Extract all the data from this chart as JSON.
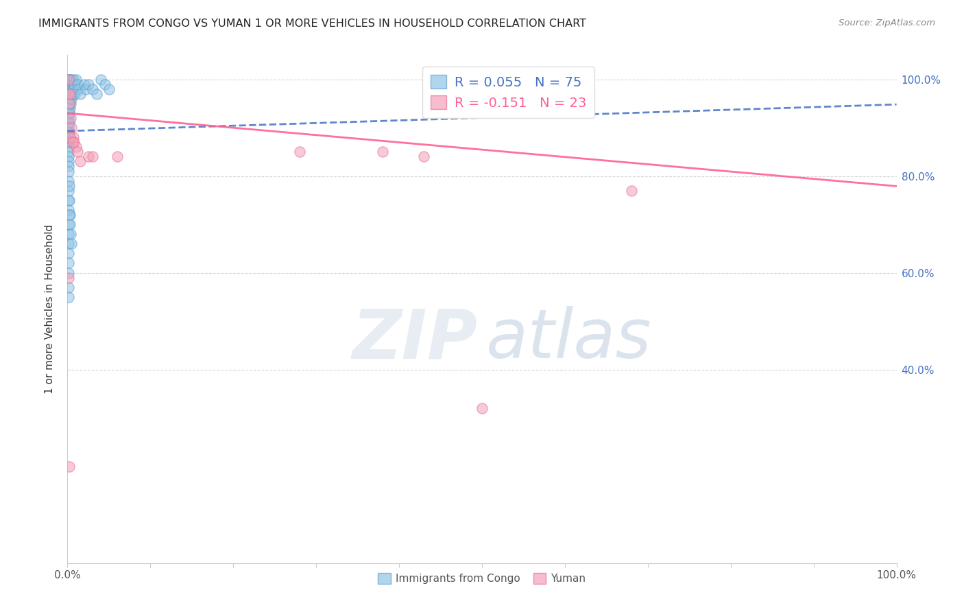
{
  "title": "IMMIGRANTS FROM CONGO VS YUMAN 1 OR MORE VEHICLES IN HOUSEHOLD CORRELATION CHART",
  "source": "Source: ZipAtlas.com",
  "ylabel": "1 or more Vehicles in Household",
  "xlim": [
    0.0,
    1.0
  ],
  "ylim": [
    0.0,
    1.05
  ],
  "blue_R": 0.055,
  "pink_R": -0.151,
  "blue_N": 75,
  "pink_N": 23,
  "blue_color": "#90c4e4",
  "pink_color": "#f4a0b8",
  "blue_edge_color": "#5a9fd4",
  "pink_edge_color": "#e87090",
  "blue_trend_color": "#4472C4",
  "pink_trend_color": "#FF6090",
  "blue_scatter": [
    [
      0.001,
      1.0
    ],
    [
      0.001,
      0.99
    ],
    [
      0.001,
      0.98
    ],
    [
      0.001,
      0.97
    ],
    [
      0.001,
      0.96
    ],
    [
      0.001,
      0.95
    ],
    [
      0.001,
      0.94
    ],
    [
      0.001,
      0.93
    ],
    [
      0.001,
      0.92
    ],
    [
      0.001,
      0.91
    ],
    [
      0.001,
      0.9
    ],
    [
      0.001,
      0.89
    ],
    [
      0.001,
      0.88
    ],
    [
      0.001,
      0.87
    ],
    [
      0.001,
      0.86
    ],
    [
      0.001,
      0.85
    ],
    [
      0.001,
      0.84
    ],
    [
      0.001,
      0.83
    ],
    [
      0.001,
      0.82
    ],
    [
      0.001,
      0.81
    ],
    [
      0.002,
      1.0
    ],
    [
      0.002,
      0.99
    ],
    [
      0.002,
      0.97
    ],
    [
      0.002,
      0.95
    ],
    [
      0.002,
      0.93
    ],
    [
      0.002,
      0.91
    ],
    [
      0.002,
      0.89
    ],
    [
      0.002,
      0.87
    ],
    [
      0.003,
      1.0
    ],
    [
      0.003,
      0.98
    ],
    [
      0.003,
      0.96
    ],
    [
      0.003,
      0.94
    ],
    [
      0.004,
      0.99
    ],
    [
      0.004,
      0.97
    ],
    [
      0.004,
      0.95
    ],
    [
      0.005,
      1.0
    ],
    [
      0.005,
      0.98
    ],
    [
      0.005,
      0.96
    ],
    [
      0.006,
      0.99
    ],
    [
      0.006,
      0.97
    ],
    [
      0.007,
      1.0
    ],
    [
      0.007,
      0.98
    ],
    [
      0.008,
      0.99
    ],
    [
      0.009,
      0.97
    ],
    [
      0.01,
      1.0
    ],
    [
      0.012,
      0.99
    ],
    [
      0.013,
      0.98
    ],
    [
      0.015,
      0.97
    ],
    [
      0.02,
      0.99
    ],
    [
      0.022,
      0.98
    ],
    [
      0.001,
      0.79
    ],
    [
      0.001,
      0.77
    ],
    [
      0.001,
      0.75
    ],
    [
      0.001,
      0.73
    ],
    [
      0.001,
      0.7
    ],
    [
      0.001,
      0.68
    ],
    [
      0.001,
      0.66
    ],
    [
      0.001,
      0.64
    ],
    [
      0.001,
      0.62
    ],
    [
      0.001,
      0.6
    ],
    [
      0.002,
      0.78
    ],
    [
      0.002,
      0.75
    ],
    [
      0.003,
      0.72
    ],
    [
      0.025,
      0.99
    ],
    [
      0.03,
      0.98
    ],
    [
      0.035,
      0.97
    ],
    [
      0.04,
      1.0
    ],
    [
      0.045,
      0.99
    ],
    [
      0.05,
      0.98
    ],
    [
      0.001,
      0.57
    ],
    [
      0.001,
      0.55
    ],
    [
      0.002,
      0.72
    ],
    [
      0.003,
      0.7
    ],
    [
      0.004,
      0.68
    ],
    [
      0.005,
      0.66
    ]
  ],
  "pink_scatter": [
    [
      0.001,
      0.97
    ],
    [
      0.002,
      0.95
    ],
    [
      0.003,
      0.97
    ],
    [
      0.004,
      0.92
    ],
    [
      0.005,
      0.9
    ],
    [
      0.007,
      0.88
    ],
    [
      0.008,
      0.87
    ],
    [
      0.01,
      0.86
    ],
    [
      0.012,
      0.85
    ],
    [
      0.015,
      0.83
    ],
    [
      0.025,
      0.84
    ],
    [
      0.03,
      0.84
    ],
    [
      0.003,
      0.88
    ],
    [
      0.006,
      0.87
    ],
    [
      0.38,
      0.85
    ],
    [
      0.43,
      0.84
    ],
    [
      0.68,
      0.77
    ],
    [
      0.001,
      0.59
    ],
    [
      0.002,
      0.2
    ],
    [
      0.5,
      0.32
    ],
    [
      0.001,
      1.0
    ],
    [
      0.06,
      0.84
    ],
    [
      0.28,
      0.85
    ]
  ],
  "blue_trend_x": [
    0.0,
    1.0
  ],
  "blue_trend_y": [
    0.893,
    0.948
  ],
  "pink_trend_x": [
    0.0,
    1.0
  ],
  "pink_trend_y": [
    0.93,
    0.779
  ],
  "figsize": [
    14.06,
    8.92
  ],
  "dpi": 100,
  "ytick_positions": [
    0.0,
    0.2,
    0.4,
    0.6,
    0.8,
    1.0
  ],
  "right_ytick_labels": [
    "",
    "",
    "40.0%",
    "60.0%",
    "80.0%",
    "100.0%"
  ],
  "grid_yticks": [
    0.4,
    0.6,
    0.8,
    1.0
  ]
}
